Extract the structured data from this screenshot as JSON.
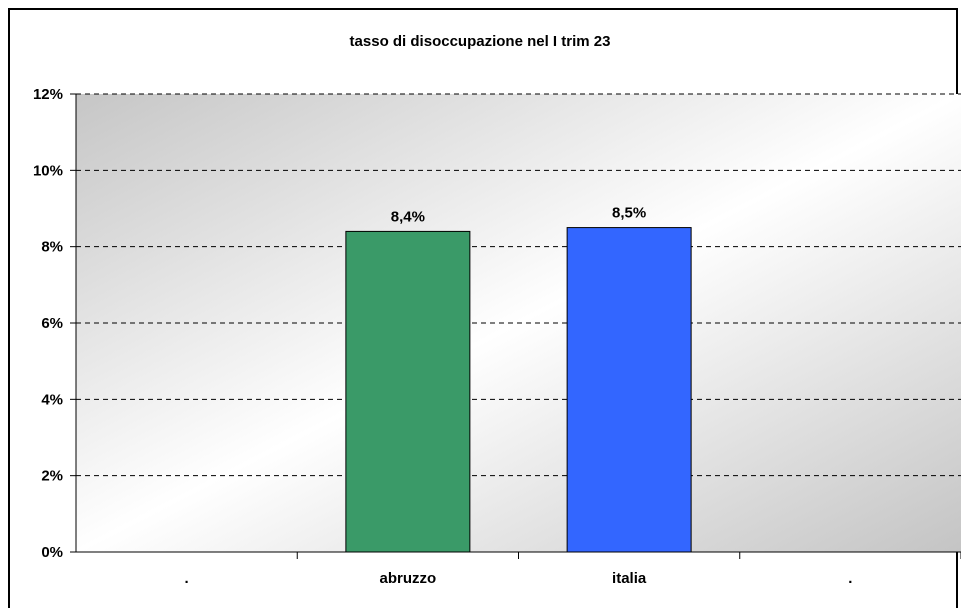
{
  "chart_data": {
    "type": "bar",
    "title": "tasso di disoccupazione nel I trim 23",
    "xlabel": "",
    "ylabel": "",
    "categories": [
      ".",
      "abruzzo",
      "italia",
      "."
    ],
    "values": [
      null,
      8.4,
      8.5,
      null
    ],
    "data_labels": [
      "",
      "8,4%",
      "8,5%",
      ""
    ],
    "bar_colors": [
      "#3a9a68",
      "#3a9a68",
      "#3366ff",
      "#3366ff"
    ],
    "ylim": [
      0,
      12
    ],
    "yticks": [
      0,
      2,
      4,
      6,
      8,
      10,
      12
    ],
    "ytick_labels": [
      "0%",
      "2%",
      "4%",
      "6%",
      "8%",
      "10%",
      "12%"
    ],
    "grid": true,
    "grid_style": "dashed",
    "legend": false
  }
}
